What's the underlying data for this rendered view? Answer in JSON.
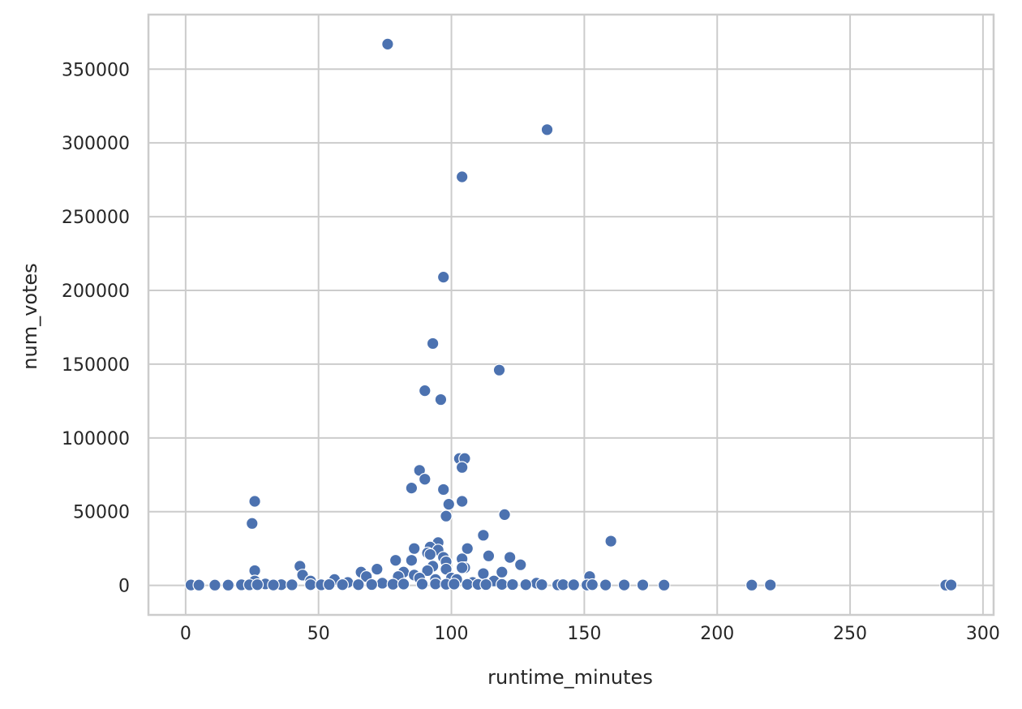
{
  "chart_data": {
    "type": "scatter",
    "title": "",
    "xlabel": "runtime_minutes",
    "ylabel": "num_votes",
    "xlim": [
      -14,
      304
    ],
    "ylim": [
      -20000,
      387000
    ],
    "xticks": [
      0,
      50,
      100,
      150,
      200,
      250,
      300
    ],
    "yticks": [
      0,
      50000,
      100000,
      150000,
      200000,
      250000,
      300000,
      350000
    ],
    "xtick_labels": [
      "0",
      "50",
      "100",
      "150",
      "200",
      "250",
      "300"
    ],
    "ytick_labels": [
      "0",
      "50000",
      "100000",
      "150000",
      "200000",
      "250000",
      "300000",
      "350000"
    ],
    "grid": true,
    "legend": "none",
    "marker_color": "#4c72b0",
    "marker_edge_color": "#ffffff",
    "grid_color": "#cccccc",
    "spine_color": "#cccccc",
    "points": [
      [
        76,
        367000
      ],
      [
        136,
        309000
      ],
      [
        104,
        277000
      ],
      [
        97,
        209000
      ],
      [
        93,
        164000
      ],
      [
        118,
        146000
      ],
      [
        90,
        132000
      ],
      [
        96,
        126000
      ],
      [
        103,
        86000
      ],
      [
        105,
        86000
      ],
      [
        104,
        80000
      ],
      [
        88,
        78000
      ],
      [
        90,
        72000
      ],
      [
        85,
        66000
      ],
      [
        97,
        65000
      ],
      [
        26,
        57000
      ],
      [
        104,
        57000
      ],
      [
        99,
        55000
      ],
      [
        98,
        47000
      ],
      [
        120,
        48000
      ],
      [
        25,
        42000
      ],
      [
        112,
        34000
      ],
      [
        160,
        30000
      ],
      [
        95,
        29000
      ],
      [
        92,
        26000
      ],
      [
        86,
        25000
      ],
      [
        106,
        25000
      ],
      [
        95,
        24000
      ],
      [
        91,
        22000
      ],
      [
        92,
        21000
      ],
      [
        114,
        20000
      ],
      [
        122,
        19000
      ],
      [
        97,
        19000
      ],
      [
        104,
        18000
      ],
      [
        79,
        17000
      ],
      [
        85,
        17000
      ],
      [
        98,
        16000
      ],
      [
        126,
        14000
      ],
      [
        43,
        13000
      ],
      [
        93,
        13000
      ],
      [
        105,
        12000
      ],
      [
        104,
        12000
      ],
      [
        72,
        11000
      ],
      [
        26,
        10000
      ],
      [
        98,
        11000
      ],
      [
        91,
        10000
      ],
      [
        119,
        9000
      ],
      [
        66,
        9000
      ],
      [
        82,
        9000
      ],
      [
        112,
        8000
      ],
      [
        44,
        7000
      ],
      [
        68,
        6000
      ],
      [
        152,
        6000
      ],
      [
        86,
        7000
      ],
      [
        80,
        6000
      ],
      [
        88,
        5000
      ],
      [
        100,
        5000
      ],
      [
        56,
        4000
      ],
      [
        47,
        3000
      ],
      [
        26,
        3000
      ],
      [
        94,
        4000
      ],
      [
        102,
        4000
      ],
      [
        116,
        3000
      ],
      [
        61,
        2000
      ],
      [
        30,
        1000
      ],
      [
        132,
        1500
      ],
      [
        108,
        2000
      ],
      [
        74,
        1500
      ],
      [
        36,
        500
      ],
      [
        2,
        300
      ],
      [
        5,
        200
      ],
      [
        11,
        200
      ],
      [
        16,
        200
      ],
      [
        21,
        400
      ],
      [
        24,
        400
      ],
      [
        27,
        500
      ],
      [
        33,
        300
      ],
      [
        40,
        400
      ],
      [
        47,
        500
      ],
      [
        51,
        400
      ],
      [
        54,
        600
      ],
      [
        59,
        500
      ],
      [
        65,
        500
      ],
      [
        70,
        600
      ],
      [
        78,
        800
      ],
      [
        82,
        900
      ],
      [
        89,
        900
      ],
      [
        94,
        1000
      ],
      [
        98,
        800
      ],
      [
        101,
        900
      ],
      [
        106,
        700
      ],
      [
        110,
        700
      ],
      [
        113,
        600
      ],
      [
        119,
        700
      ],
      [
        123,
        600
      ],
      [
        128,
        500
      ],
      [
        134,
        500
      ],
      [
        140,
        400
      ],
      [
        142,
        500
      ],
      [
        146,
        400
      ],
      [
        151,
        300
      ],
      [
        153,
        500
      ],
      [
        158,
        300
      ],
      [
        165,
        300
      ],
      [
        172,
        300
      ],
      [
        180,
        200
      ],
      [
        213,
        200
      ],
      [
        220,
        300
      ],
      [
        286,
        200
      ],
      [
        288,
        300
      ]
    ]
  }
}
